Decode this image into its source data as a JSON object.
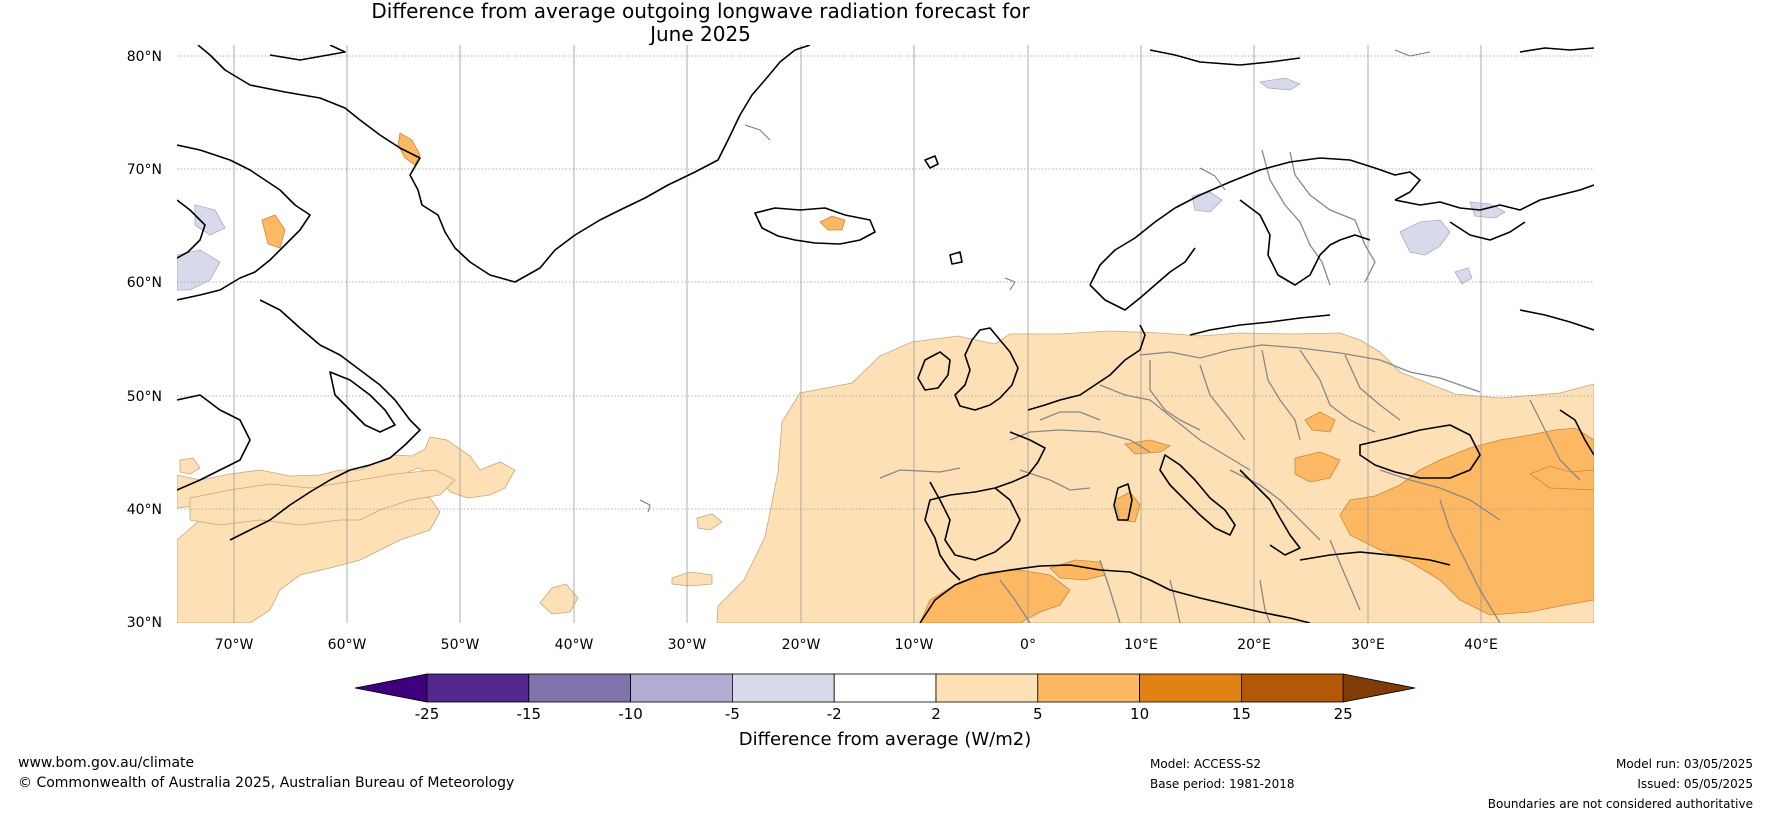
{
  "title": {
    "line1": "Difference from average outgoing longwave radiation forecast for",
    "line2": "June 2025"
  },
  "map": {
    "lat_labels": [
      "80°N",
      "70°N",
      "60°N",
      "50°N",
      "40°N",
      "30°N"
    ],
    "lon_labels": [
      "70°W",
      "60°W",
      "50°W",
      "40°W",
      "30°W",
      "20°W",
      "10°W",
      "0°",
      "10°E",
      "20°E",
      "30°E",
      "40°E"
    ],
    "extent": {
      "lon_min": -75,
      "lon_max": 50,
      "lat_min": 30,
      "lat_max": 81
    }
  },
  "colorbar": {
    "label": "Difference from average (W/m2)",
    "ticks": [
      "-25",
      "-15",
      "-10",
      "-5",
      "-2",
      "2",
      "5",
      "10",
      "15",
      "25"
    ],
    "bins": [
      {
        "range": "< -25",
        "color": "#3f007d"
      },
      {
        "range": "-25 to -15",
        "color": "#54278f"
      },
      {
        "range": "-15 to -10",
        "color": "#8073ac"
      },
      {
        "range": "-10 to -5",
        "color": "#b2abd2"
      },
      {
        "range": "-5 to -2",
        "color": "#d8daeb"
      },
      {
        "range": "-2 to 2",
        "color": "#ffffff"
      },
      {
        "range": "2 to 5",
        "color": "#fee0b6"
      },
      {
        "range": "5 to 10",
        "color": "#fdb863"
      },
      {
        "range": "10 to 15",
        "color": "#e08214"
      },
      {
        "range": "15 to 25",
        "color": "#b35806"
      },
      {
        "range": "> 25",
        "color": "#7f3b08"
      }
    ]
  },
  "footer": {
    "website": "www.bom.gov.au/climate",
    "copyright": "© Commonwealth of Australia 2025, Australian Bureau of Meteorology",
    "model": "Model: ACCESS-S2",
    "base_period": "Base period: 1981-2018",
    "model_run": "Model run: 03/05/2025",
    "issued": "Issued: 05/05/2025",
    "disclaimer": "Boundaries are not considered authoritative"
  }
}
